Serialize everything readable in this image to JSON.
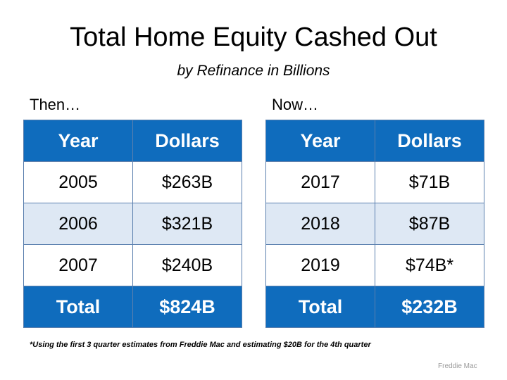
{
  "header": {
    "title": "Total Home Equity Cashed Out",
    "subtitle": "by Refinance in Billions"
  },
  "tables": [
    {
      "label": "Then…",
      "columns": [
        "Year",
        "Dollars"
      ],
      "rows": [
        [
          "2005",
          "$263B"
        ],
        [
          "2006",
          "$321B"
        ],
        [
          "2007",
          "$240B"
        ]
      ],
      "total": [
        "Total",
        "$824B"
      ]
    },
    {
      "label": "Now…",
      "columns": [
        "Year",
        "Dollars"
      ],
      "rows": [
        [
          "2017",
          "$71B"
        ],
        [
          "2018",
          "$87B"
        ],
        [
          "2019",
          "$74B*"
        ]
      ],
      "total": [
        "Total",
        "$232B"
      ]
    }
  ],
  "footnote": "*Using the first 3 quarter estimates from Freddie Mac and estimating $20B for the 4th quarter",
  "source": "Freddie Mac"
}
